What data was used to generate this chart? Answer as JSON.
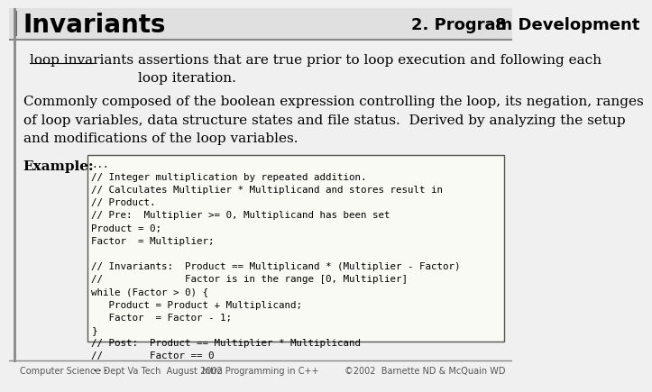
{
  "title": "Invariants",
  "header_right": "2. Program Development",
  "slide_number": "8",
  "bg_color": "#f0f0f0",
  "box_bg": "#ffffff",
  "term": "loop invariants",
  "definition": "assertions that are true prior to loop execution and following each\nloop iteration.",
  "body_text": "Commonly composed of the boolean expression controlling the loop, its negation, ranges\nof loop variables, data structure states and file status.  Derived by analyzing the setup\nand modifications of the loop variables.",
  "example_label": "Example:",
  "code_lines": [
    "...",
    "// Integer multiplication by repeated addition.",
    "// Calculates Multiplier * Multiplicand and stores result in",
    "// Product.",
    "// Pre:  Multiplier >= 0, Multiplicand has been set",
    "Product = 0;",
    "Factor  = Multiplier;",
    "",
    "// Invariants:  Product == Multiplicand * (Multiplier - Factor)",
    "//              Factor is in the range [0, Multiplier]",
    "while (Factor > 0) {",
    "   Product = Product + Multiplicand;",
    "   Factor  = Factor - 1;",
    "}",
    "// Post:  Product == Multiplier * Multiplicand",
    "//        Factor == 0",
    "..."
  ],
  "footer_left": "Computer Science Dept Va Tech  August 2002",
  "footer_center": "Intro Programming in C++",
  "footer_right": "©2002  Barnette ND & McQuain WD"
}
